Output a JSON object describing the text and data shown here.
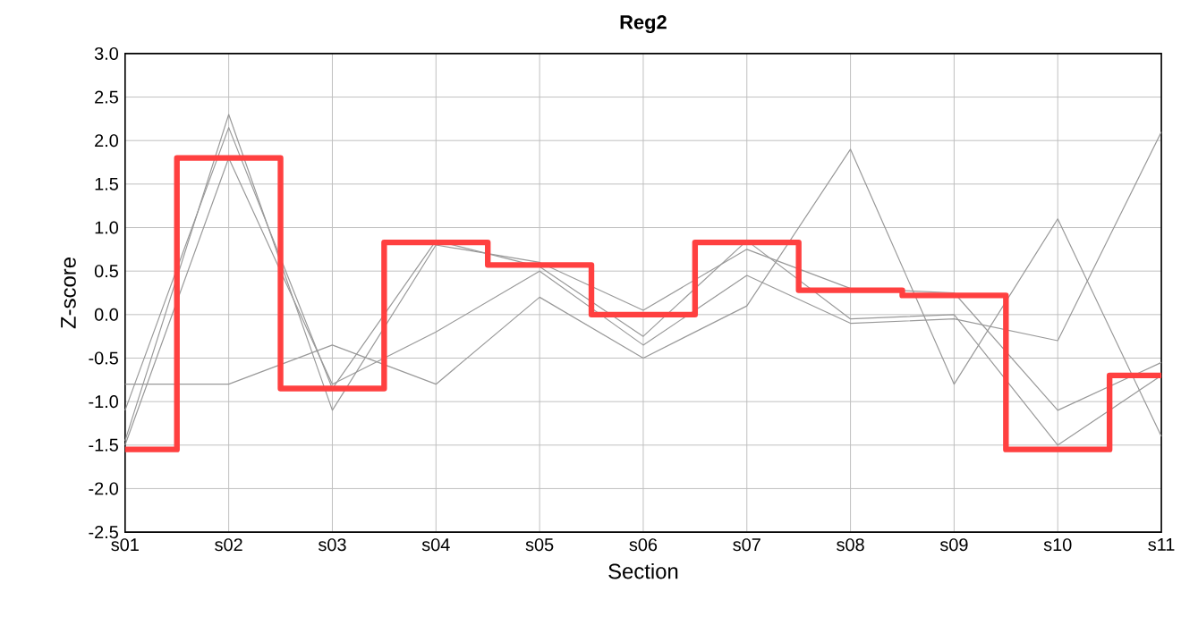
{
  "chart_data": {
    "type": "line",
    "title": "Reg2",
    "xlabel": "Section",
    "ylabel": "Z-score",
    "categories": [
      "s01",
      "s02",
      "s03",
      "s04",
      "s05",
      "s06",
      "s07",
      "s08",
      "s09",
      "s10",
      "s11"
    ],
    "series": [
      {
        "color": "#999999",
        "values": [
          -0.8,
          -0.8,
          -0.35,
          -0.8,
          0.2,
          -0.5,
          0.1,
          1.9,
          -0.8,
          1.1,
          -1.4
        ]
      },
      {
        "color": "#999999",
        "values": [
          -1.45,
          2.3,
          -1.1,
          0.8,
          0.6,
          0.05,
          0.75,
          0.3,
          0.25,
          -1.1,
          -0.55
        ]
      },
      {
        "color": "#999999",
        "values": [
          -1.1,
          2.15,
          -0.85,
          0.85,
          0.55,
          -0.25,
          0.85,
          -0.05,
          0.0,
          -1.5,
          -0.7
        ]
      },
      {
        "color": "#999999",
        "values": [
          -1.5,
          1.8,
          -0.8,
          -0.2,
          0.5,
          -0.35,
          0.45,
          -0.1,
          -0.05,
          -0.3,
          2.1
        ]
      },
      {
        "type": "step",
        "color": "#ff4040",
        "values": [
          -1.55,
          1.8,
          -0.85,
          0.83,
          0.57,
          0.0,
          0.83,
          0.28,
          0.22,
          -1.55,
          -0.7
        ]
      }
    ],
    "ylim": [
      -2.5,
      3.0
    ],
    "yticks": [
      {
        "value": -2.5,
        "label": "-2.5"
      },
      {
        "value": -2.0,
        "label": "-2.0"
      },
      {
        "value": -1.5,
        "label": "-1.5"
      },
      {
        "value": -1.0,
        "label": "-1.0"
      },
      {
        "value": -0.5,
        "label": "-0.5"
      },
      {
        "value": 0.0,
        "label": "0.0"
      },
      {
        "value": 0.5,
        "label": "0.5"
      },
      {
        "value": 1.0,
        "label": "1.0"
      },
      {
        "value": 1.5,
        "label": "1.5"
      },
      {
        "value": 2.0,
        "label": "2.0"
      },
      {
        "value": 2.5,
        "label": "2.5"
      },
      {
        "value": 3.0,
        "label": "3.0"
      }
    ],
    "grid": true,
    "marker": "none",
    "line_style": "solid"
  }
}
